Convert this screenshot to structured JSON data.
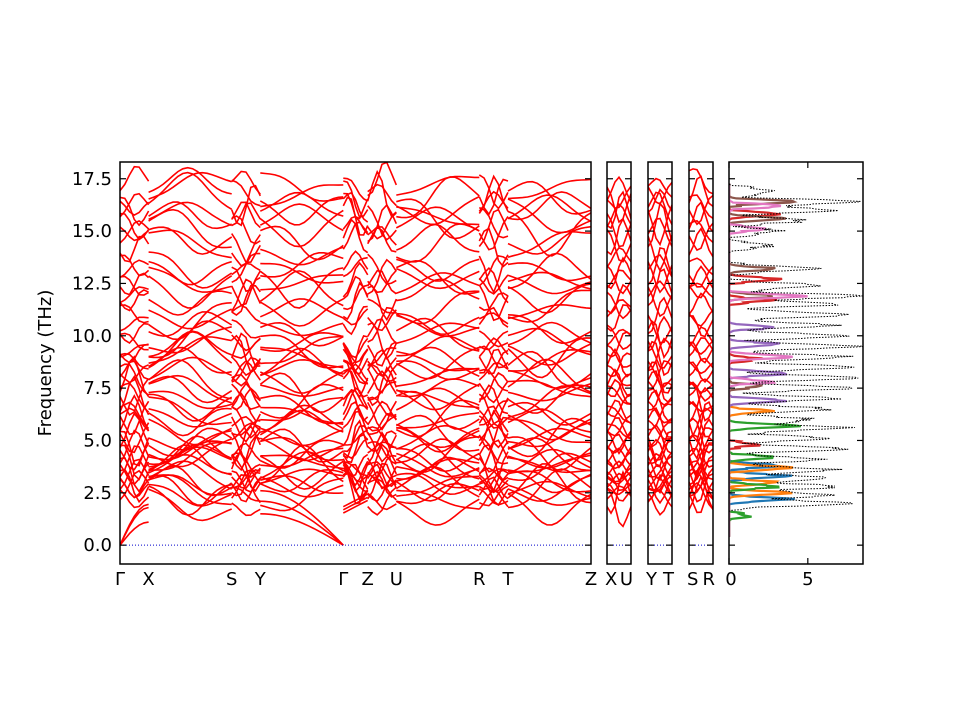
{
  "chart_data": {
    "type": "line",
    "ylabel": "Frequency (THz)",
    "ylim": [
      -0.9,
      18.3
    ],
    "yticks": [
      "0.0",
      "2.5",
      "5.0",
      "7.5",
      "10.0",
      "12.5",
      "15.0",
      "17.5"
    ],
    "colors": {
      "bands": "#ff0000",
      "zero_line": "#0000cc",
      "total_dos": "#000000",
      "pdos": [
        "#1f77b4",
        "#ff7f0e",
        "#2ca02c",
        "#d62728",
        "#9467bd",
        "#8c564b",
        "#e377c2"
      ]
    },
    "band_panels": [
      {
        "segments": [
          {
            "from": "Γ",
            "to": "X",
            "weight": 1.0
          },
          {
            "from": "X",
            "to": "S",
            "weight": 2.9
          },
          {
            "from": "S",
            "to": "Y",
            "weight": 1.0
          },
          {
            "from": "Y",
            "to": "Γ",
            "weight": 2.9
          },
          {
            "from": "Γ",
            "to": "Z",
            "weight": 0.85
          },
          {
            "from": "Z",
            "to": "U",
            "weight": 1.0
          },
          {
            "from": "U",
            "to": "R",
            "weight": 2.9
          },
          {
            "from": "R",
            "to": "T",
            "weight": 1.0
          },
          {
            "from": "T",
            "to": "Z",
            "weight": 2.9
          }
        ],
        "tick_labels": [
          "Γ",
          "X",
          "S",
          "Y",
          "Γ",
          "Z",
          "U",
          "R",
          "T",
          "Z"
        ]
      },
      {
        "segments": [
          {
            "from": "X",
            "to": "U",
            "weight": 1.0
          }
        ],
        "tick_labels": [
          "X",
          "U"
        ]
      },
      {
        "segments": [
          {
            "from": "Y",
            "to": "T",
            "weight": 1.0
          }
        ],
        "tick_labels": [
          "Y",
          "T"
        ]
      },
      {
        "segments": [
          {
            "from": "S",
            "to": "R",
            "weight": 1.0
          }
        ],
        "tick_labels": [
          "S",
          "R"
        ]
      }
    ],
    "dos_panel": {
      "xlim": [
        0,
        8.5
      ],
      "xticks": [
        "0",
        "5"
      ]
    },
    "acoustic_branches": {
      "gamma_x_endpoints": [
        1.1,
        1.8,
        1.95
      ],
      "y_gamma_startpoints": [
        1.5,
        2.1,
        2.6
      ]
    },
    "band_bases": [
      2.05,
      2.25,
      2.45,
      2.62,
      2.8,
      2.95,
      3.1,
      3.25,
      3.45,
      3.6,
      3.8,
      4.0,
      4.2,
      4.4,
      4.6,
      4.85,
      5.1,
      5.35,
      5.6,
      5.85,
      6.1,
      6.4,
      6.7,
      7.0,
      7.3,
      7.6,
      7.9,
      8.2,
      8.5,
      8.8,
      9.1,
      9.4,
      9.7,
      10.0,
      10.6,
      11.0,
      11.5,
      11.9,
      12.3,
      12.7,
      13.05,
      13.25,
      14.3,
      14.7,
      15.1,
      15.5,
      15.9,
      16.3,
      16.7,
      17.1
    ],
    "dos_peaks": [
      {
        "f": 2.0,
        "h": 7.3
      },
      {
        "f": 2.4,
        "h": 6.0
      },
      {
        "f": 2.8,
        "h": 6.6
      },
      {
        "f": 3.2,
        "h": 5.8
      },
      {
        "f": 3.6,
        "h": 6.4
      },
      {
        "f": 4.1,
        "h": 5.2
      },
      {
        "f": 4.6,
        "h": 6.8
      },
      {
        "f": 5.1,
        "h": 6.0
      },
      {
        "f": 5.6,
        "h": 7.2
      },
      {
        "f": 6.0,
        "h": 5.0
      },
      {
        "f": 6.5,
        "h": 6.2
      },
      {
        "f": 7.0,
        "h": 6.6
      },
      {
        "f": 7.5,
        "h": 7.4
      },
      {
        "f": 8.0,
        "h": 8.2
      },
      {
        "f": 8.5,
        "h": 7.6
      },
      {
        "f": 9.0,
        "h": 6.9
      },
      {
        "f": 9.5,
        "h": 7.8
      },
      {
        "f": 10.0,
        "h": 7.0
      },
      {
        "f": 10.5,
        "h": 6.4
      },
      {
        "f": 11.0,
        "h": 7.2
      },
      {
        "f": 11.5,
        "h": 6.2
      },
      {
        "f": 11.9,
        "h": 8.1
      },
      {
        "f": 12.4,
        "h": 5.6
      },
      {
        "f": 13.2,
        "h": 5.2
      },
      {
        "f": 14.3,
        "h": 2.2
      },
      {
        "f": 15.0,
        "h": 2.8
      },
      {
        "f": 15.5,
        "h": 4.5
      },
      {
        "f": 16.0,
        "h": 6.5
      },
      {
        "f": 16.4,
        "h": 7.5
      },
      {
        "f": 16.9,
        "h": 3.0
      }
    ],
    "pdos_peaks": [
      [
        {
          "f": 2.2,
          "h": 3.8
        },
        {
          "f": 3.3,
          "h": 3.5
        },
        {
          "f": 3.8,
          "h": 3.0
        }
      ],
      [
        {
          "f": 2.5,
          "h": 3.5
        },
        {
          "f": 3.0,
          "h": 2.7
        },
        {
          "f": 3.7,
          "h": 3.9
        },
        {
          "f": 6.4,
          "h": 2.5
        }
      ],
      [
        {
          "f": 1.4,
          "h": 1.2
        },
        {
          "f": 2.8,
          "h": 2.8
        },
        {
          "f": 4.2,
          "h": 2.6
        },
        {
          "f": 5.7,
          "h": 4.5
        }
      ],
      [
        {
          "f": 4.8,
          "h": 1.6
        },
        {
          "f": 8.9,
          "h": 1.8
        },
        {
          "f": 11.7,
          "h": 2.5
        },
        {
          "f": 12.7,
          "h": 3.0
        },
        {
          "f": 15.8,
          "h": 2.9
        }
      ],
      [
        {
          "f": 6.9,
          "h": 3.2
        },
        {
          "f": 8.2,
          "h": 3.6
        },
        {
          "f": 9.6,
          "h": 2.9
        },
        {
          "f": 10.4,
          "h": 2.6
        }
      ],
      [
        {
          "f": 7.6,
          "h": 2.0
        },
        {
          "f": 11.9,
          "h": 2.8
        },
        {
          "f": 13.2,
          "h": 2.6
        },
        {
          "f": 15.6,
          "h": 3.2
        },
        {
          "f": 16.4,
          "h": 3.9
        }
      ],
      [
        {
          "f": 7.8,
          "h": 2.5
        },
        {
          "f": 9.0,
          "h": 3.8
        },
        {
          "f": 11.9,
          "h": 4.7
        },
        {
          "f": 15.1,
          "h": 2.3
        },
        {
          "f": 16.2,
          "h": 3.0
        }
      ]
    ]
  }
}
